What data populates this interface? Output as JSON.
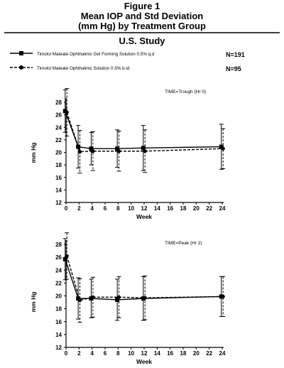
{
  "figure": {
    "title_line1": "Figure 1",
    "title_line2": "Mean IOP and Std Deviation",
    "title_line3": "(mm Hg) by Treatment Group",
    "study": "U.S. Study"
  },
  "legend": [
    {
      "label": "Timolol Maleate Ophthalmic Gel Forming Solution 0.5% q.d",
      "n": "N=191",
      "style": "solid",
      "marker": "square"
    },
    {
      "label": "Timolol Maleate Ophthalmic Solution 0.5% b.id",
      "n": "N=95",
      "style": "dashed",
      "marker": "circle"
    }
  ],
  "colors": {
    "ink": "#000000"
  },
  "chart_data": [
    {
      "type": "line",
      "annotation": "TIME=Trough (Hr 0)",
      "xlabel": "Week",
      "ylabel": "mm Hg",
      "xlim": [
        0,
        24
      ],
      "ylim": [
        12,
        28
      ],
      "xticks": [
        0,
        2,
        4,
        6,
        8,
        10,
        12,
        14,
        16,
        18,
        20,
        22,
        24
      ],
      "yticks": [
        12,
        14,
        16,
        18,
        20,
        22,
        24,
        26,
        28
      ],
      "grid": false,
      "series": [
        {
          "name": "Timolol Maleate Ophthalmic Gel Forming Solution 0.5% q.d",
          "x": [
            0,
            2,
            4,
            8,
            12,
            24
          ],
          "y": [
            26.6,
            20.9,
            20.6,
            20.6,
            20.7,
            20.9
          ],
          "sd": [
            3.4,
            3.4,
            2.6,
            3.0,
            3.6,
            3.6
          ]
        },
        {
          "name": "Timolol Maleate Ophthalmic Solution 0.5% b.id",
          "x": [
            0,
            2,
            4,
            8,
            12,
            24
          ],
          "y": [
            26.4,
            20.1,
            20.2,
            20.2,
            20.2,
            20.6
          ],
          "sd": [
            3.8,
            3.4,
            3.1,
            3.2,
            3.4,
            3.2
          ]
        }
      ]
    },
    {
      "type": "line",
      "annotation": "TIME=Peak (Hr 2)",
      "xlabel": "Week",
      "ylabel": "mm Hg",
      "xlim": [
        0,
        24
      ],
      "ylim": [
        12,
        28
      ],
      "xticks": [
        0,
        2,
        4,
        6,
        8,
        10,
        12,
        14,
        16,
        18,
        20,
        22,
        24
      ],
      "yticks": [
        12,
        14,
        16,
        18,
        20,
        22,
        24,
        26,
        28
      ],
      "grid": false,
      "series": [
        {
          "name": "Timolol Maleate Ophthalmic Gel Forming Solution 0.5% q.d",
          "x": [
            0,
            2,
            4,
            8,
            12,
            24
          ],
          "y": [
            25.7,
            19.6,
            19.6,
            19.4,
            19.6,
            19.9
          ],
          "sd": [
            3.2,
            3.2,
            3.0,
            3.2,
            3.4,
            3.1
          ]
        },
        {
          "name": "Timolol Maleate Ophthalmic Solution 0.5% b.id",
          "x": [
            0,
            2,
            4,
            8,
            12,
            24
          ],
          "y": [
            26.2,
            19.3,
            19.8,
            19.8,
            19.7,
            19.9
          ],
          "sd": [
            3.6,
            3.4,
            3.1,
            3.2,
            3.4,
            3.1
          ]
        }
      ]
    }
  ]
}
